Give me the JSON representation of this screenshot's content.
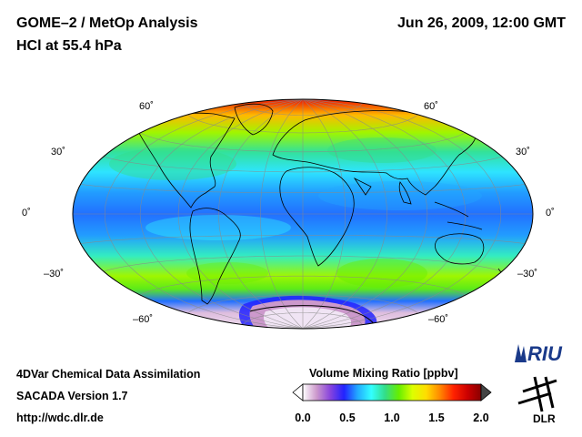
{
  "header": {
    "title_line1": "GOME–2 / MetOp Analysis",
    "title_line2": "HCl at 55.4 hPa",
    "datetime": "Jun 26, 2009, 12:00 GMT"
  },
  "map": {
    "projection": "Hammer-Aitoff (global)",
    "lat_labels": [
      "60˚",
      "30˚",
      "0˚",
      "–30˚",
      "–60˚"
    ],
    "field": {
      "variable": "HCl volume mixing ratio",
      "zonal_mean_ppbv": [
        {
          "lat": 90,
          "value": 1.75
        },
        {
          "lat": 75,
          "value": 1.45
        },
        {
          "lat": 60,
          "value": 1.15
        },
        {
          "lat": 45,
          "value": 0.9
        },
        {
          "lat": 30,
          "value": 0.72
        },
        {
          "lat": 15,
          "value": 0.6
        },
        {
          "lat": 0,
          "value": 0.55
        },
        {
          "lat": -15,
          "value": 0.6
        },
        {
          "lat": -30,
          "value": 0.85
        },
        {
          "lat": -45,
          "value": 1.15
        },
        {
          "lat": -55,
          "value": 1.05
        },
        {
          "lat": -65,
          "value": 0.55
        },
        {
          "lat": -75,
          "value": 0.1
        },
        {
          "lat": -90,
          "value": 0.05
        }
      ]
    }
  },
  "colorbar": {
    "title": "Volume Mixing Ratio [ppbv]",
    "ticks": [
      "0.0",
      "0.5",
      "1.0",
      "1.5",
      "2.0"
    ],
    "range": [
      0.0,
      2.0
    ],
    "colors": [
      "#ffffff",
      "#cc99cc",
      "#8844dd",
      "#2222ff",
      "#22aaff",
      "#33ffff",
      "#33dd88",
      "#66ee00",
      "#ddff00",
      "#ffdd00",
      "#ff8800",
      "#ff2200",
      "#cc0000",
      "#880000"
    ]
  },
  "footer": {
    "line1": "4DVar Chemical Data Assimilation",
    "line2": "SACADA Version 1.7",
    "line3": "http://wdc.dlr.de"
  },
  "logos": {
    "riu": "RIU",
    "dlr": "DLR"
  }
}
